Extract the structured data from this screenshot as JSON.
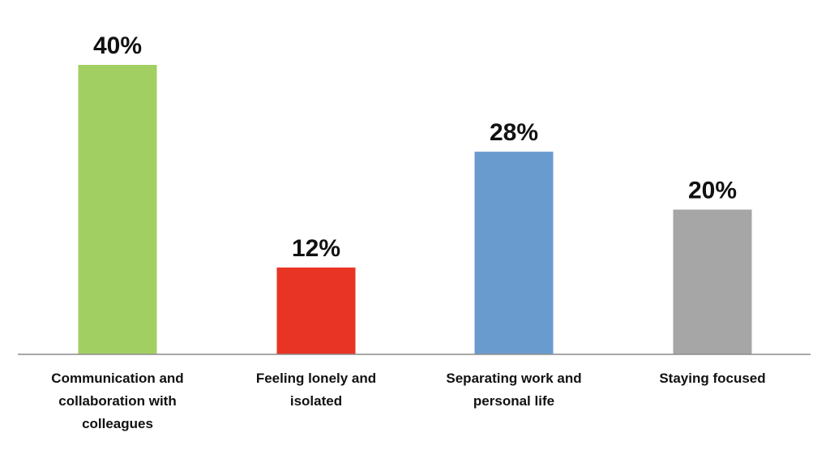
{
  "chart_data": {
    "type": "bar",
    "categories": [
      [
        "Communication and",
        "collaboration with",
        "colleagues"
      ],
      [
        "Feeling lonely and",
        "isolated"
      ],
      [
        "Separating work and",
        "personal life"
      ],
      [
        "Staying focused"
      ]
    ],
    "values": [
      40,
      12,
      28,
      20
    ],
    "value_labels": [
      "40%",
      "12%",
      "28%",
      "20%"
    ],
    "colors": [
      "#A2CF62",
      "#E83424",
      "#6A9BCF",
      "#A6A6A6"
    ],
    "ylim": [
      0,
      40
    ],
    "grid": false,
    "legend": "none"
  }
}
